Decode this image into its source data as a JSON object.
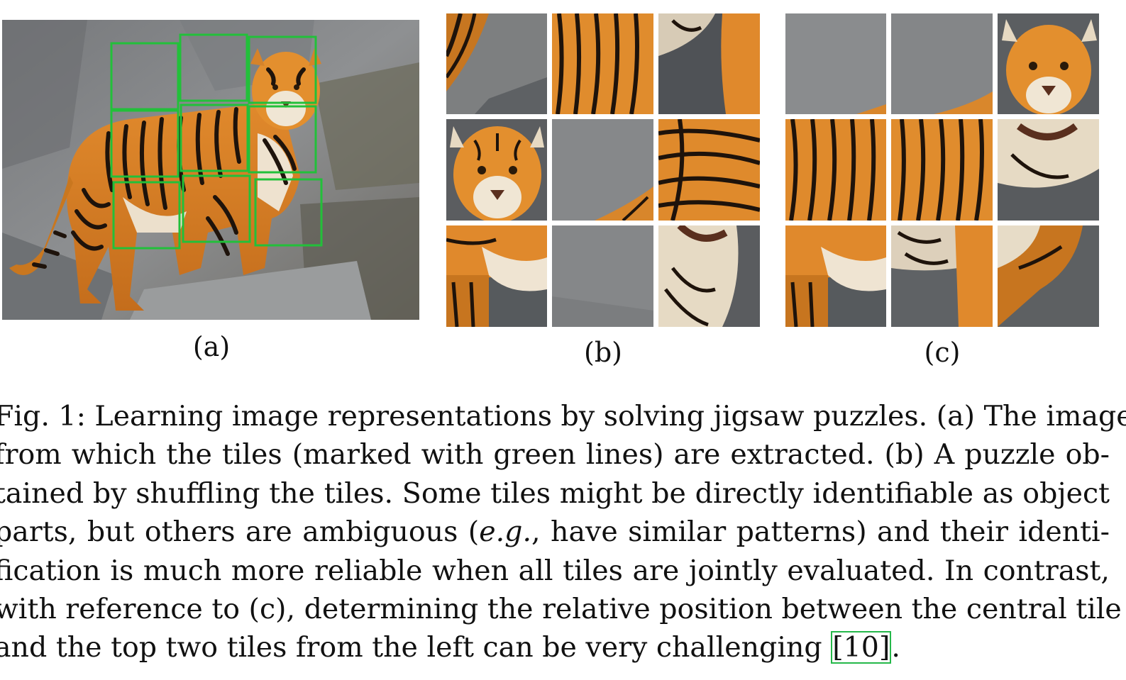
{
  "figure": {
    "panel_labels": {
      "a": "(a)",
      "b": "(b)",
      "c": "(c)"
    },
    "caption": {
      "lines": [
        "Fig. 1: Learning image representations by solving jigsaw puzzles. (a) The image",
        "from which the tiles (marked with green lines) are extracted. (b) A puzzle ob-",
        "tained by shuffling the tiles. Some tiles might be directly identifiable as object",
        {
          "before": "parts, but others are ambiguous (",
          "italic": "e.g.",
          "after": ", have similar patterns) and their identi-"
        },
        "fication is much more reliable when all tiles are jointly evaluated. In contrast,",
        "with reference to (c), determining the relative position between the central tile",
        {
          "before": "and the top two tiles from the left can be very challenging ",
          "citation": "[10]",
          "after": "."
        }
      ]
    },
    "colors": {
      "tile_box": "#22c03a",
      "rock": "#8b8d8f",
      "rock_dark": "#5f6265",
      "fur": "#d9862a",
      "stripe": "#1f140c",
      "white_fur": "#efe6d6",
      "citation_box": "#25b84a"
    },
    "icons": {
      "panel_a": "tiger-photo-with-grid",
      "panel_b": "shuffled-jigsaw-tiles",
      "panel_c": "ordered-jigsaw-tiles"
    }
  }
}
